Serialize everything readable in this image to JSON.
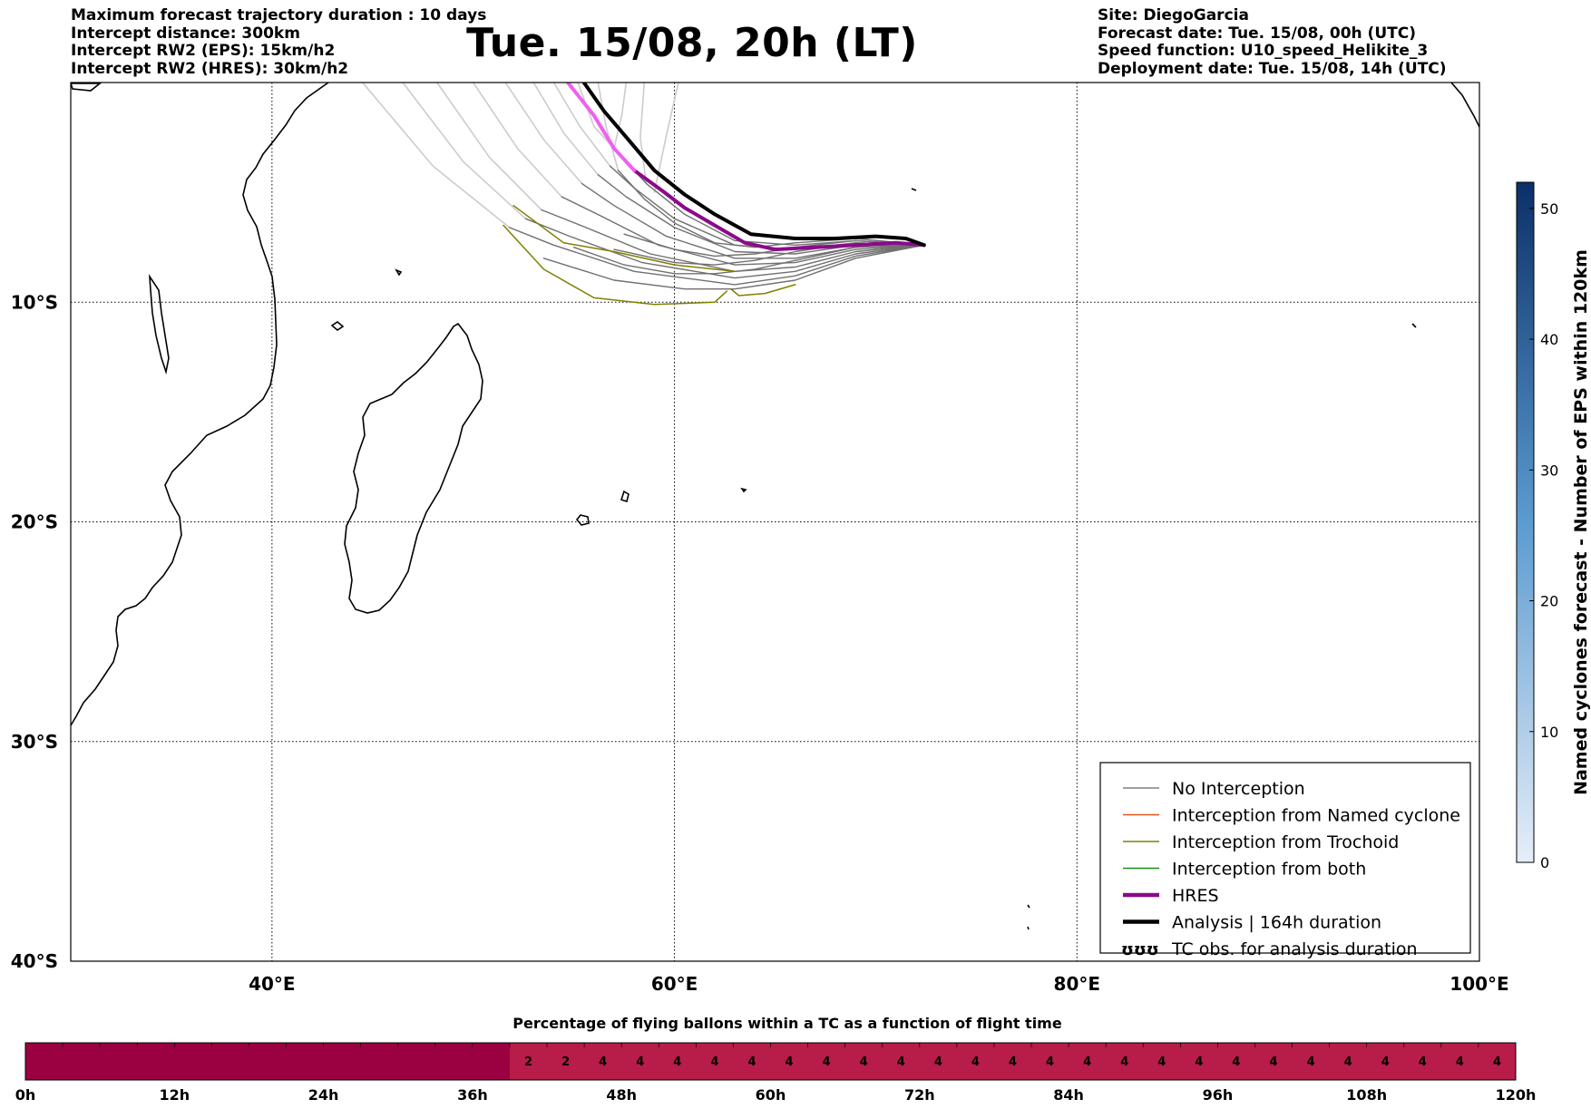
{
  "header": {
    "left": [
      "Maximum forecast trajectory duration : 10 days",
      "Intercept distance: 300km",
      "Intercept RW2 (EPS):  15km/h2",
      "Intercept RW2 (HRES): 30km/h2"
    ],
    "right": [
      "Site: DiegoGarcia",
      "Forecast date: Tue. 15/08, 00h (UTC)",
      "Speed function: U10_speed_Helikite_3",
      "Deployment date: Tue. 15/08, 14h (UTC)"
    ],
    "title": "Tue. 15/08, 20h (LT)"
  },
  "map": {
    "lon_range": [
      30,
      100
    ],
    "lat_range": [
      -40,
      0
    ],
    "lon_ticks": [
      40,
      60,
      80,
      100
    ],
    "lon_tick_labels": [
      "40°E",
      "60°E",
      "80°E",
      "100°E"
    ],
    "lat_ticks": [
      -10,
      -20,
      -30,
      -40
    ],
    "lat_tick_labels": [
      "10°S",
      "20°S",
      "30°S",
      "40°S"
    ],
    "grid": "dotted"
  },
  "legend": {
    "placement": "lower-right",
    "items": [
      {
        "label": "No Interception",
        "color": "#808080",
        "style": "thin"
      },
      {
        "label": "Interception from Named cyclone",
        "color": "#e8531a",
        "style": "thin"
      },
      {
        "label": "Interception from Trochoid",
        "color": "#808000",
        "style": "thin"
      },
      {
        "label": "Interception from both",
        "color": "#1a8c1a",
        "style": "thin"
      },
      {
        "label": "HRES",
        "color": "#8b0a8b",
        "style": "thick"
      },
      {
        "label": "Analysis | 164h duration",
        "color": "#000000",
        "style": "thick"
      },
      {
        "label": "TC obs. for analysis duration",
        "color": "#000000",
        "style": "symbol",
        "symbol": "ʊʊʊ"
      }
    ]
  },
  "colorbar_right": {
    "label": "Named cyclones forecast - Number of EPS within 120km",
    "ticks": [
      0,
      10,
      20,
      30,
      40,
      50
    ],
    "max": 52,
    "color_low": "#e6eef8",
    "color_high": "#0b3068"
  },
  "timeline": {
    "title": "Percentage of flying ballons within a TC as a function of flight time",
    "tick_labels": [
      "0h",
      "12h",
      "24h",
      "36h",
      "48h",
      "60h",
      "72h",
      "84h",
      "96h",
      "108h",
      "120h"
    ],
    "segments_3h": [
      0,
      0,
      0,
      0,
      0,
      0,
      0,
      0,
      0,
      0,
      0,
      0,
      0,
      2,
      2,
      4,
      4,
      4,
      4,
      4,
      4,
      4,
      4,
      4,
      4,
      4,
      4,
      4,
      4,
      4,
      4,
      4,
      4,
      4,
      4,
      4,
      4,
      4,
      4,
      4
    ],
    "color_zero": "#9b0040",
    "color_nonzero": "#b81c48"
  },
  "chart_data": {
    "type": "line",
    "title": "Tue. 15/08, 20h (LT)",
    "x_unit": "longitude (°E)",
    "y_unit": "latitude (°N, negative = S)",
    "xlim": [
      30,
      100
    ],
    "ylim": [
      -40,
      0
    ],
    "origin": [
      72.4,
      -7.4
    ],
    "series": [
      {
        "name": "Analysis | 164h duration",
        "color": "#000000",
        "points": [
          [
            72.4,
            -7.4
          ],
          [
            71.5,
            -7.1
          ],
          [
            70.0,
            -7.0
          ],
          [
            68.0,
            -7.1
          ],
          [
            66.0,
            -7.1
          ],
          [
            63.8,
            -6.9
          ],
          [
            62.0,
            -6.0
          ],
          [
            60.5,
            -5.1
          ],
          [
            59.0,
            -4.0
          ],
          [
            57.8,
            -2.7
          ],
          [
            56.5,
            -1.3
          ],
          [
            55.5,
            0
          ]
        ]
      },
      {
        "name": "HRES",
        "color": "#8b0a8b",
        "points": [
          [
            72.4,
            -7.4
          ],
          [
            71.0,
            -7.3
          ],
          [
            69.0,
            -7.4
          ],
          [
            67.0,
            -7.5
          ],
          [
            65.0,
            -7.6
          ],
          [
            63.5,
            -7.3
          ],
          [
            62.0,
            -6.5
          ],
          [
            60.5,
            -5.7
          ],
          [
            59.5,
            -5.0
          ],
          [
            58.0,
            -4.0
          ],
          [
            57.0,
            -3.0
          ],
          [
            56.0,
            -1.5
          ],
          [
            54.7,
            0
          ]
        ],
        "segment_colors": [
          {
            "from_index": 9,
            "color": "#f060f0"
          }
        ]
      },
      {
        "name": "EPS members (dark)",
        "color": "#707070",
        "members": [
          [
            [
              72.4,
              -7.4
            ],
            [
              69,
              -7.2
            ],
            [
              66,
              -7.4
            ],
            [
              63,
              -7.2
            ],
            [
              60.5,
              -6.0
            ],
            [
              58.6,
              -4.6
            ],
            [
              57.5,
              -3.5
            ]
          ],
          [
            [
              72.4,
              -7.4
            ],
            [
              69,
              -7.3
            ],
            [
              66,
              -7.6
            ],
            [
              63,
              -7.4
            ],
            [
              60.0,
              -6.2
            ],
            [
              58.0,
              -4.8
            ],
            [
              56.8,
              -3.8
            ]
          ],
          [
            [
              72.4,
              -7.4
            ],
            [
              69,
              -7.4
            ],
            [
              66,
              -7.8
            ],
            [
              63,
              -7.7
            ],
            [
              60.0,
              -6.6
            ],
            [
              57.6,
              -5.2
            ],
            [
              56.2,
              -4.2
            ]
          ],
          [
            [
              72.4,
              -7.4
            ],
            [
              69,
              -7.5
            ],
            [
              66,
              -8.0
            ],
            [
              63,
              -8.0
            ],
            [
              59.6,
              -7.0
            ],
            [
              57.0,
              -5.6
            ],
            [
              55.4,
              -4.6
            ]
          ],
          [
            [
              72.4,
              -7.4
            ],
            [
              69,
              -7.6
            ],
            [
              66,
              -8.2
            ],
            [
              63,
              -8.3
            ],
            [
              59.2,
              -7.4
            ],
            [
              56.4,
              -6.1
            ],
            [
              54.4,
              -5.2
            ]
          ],
          [
            [
              72.4,
              -7.4
            ],
            [
              69,
              -7.7
            ],
            [
              66,
              -8.4
            ],
            [
              63,
              -8.6
            ],
            [
              58.8,
              -7.8
            ],
            [
              55.6,
              -6.6
            ],
            [
              53.4,
              -5.8
            ]
          ],
          [
            [
              72.4,
              -7.4
            ],
            [
              69,
              -7.8
            ],
            [
              66,
              -8.6
            ],
            [
              63,
              -8.9
            ],
            [
              58.4,
              -8.2
            ],
            [
              54.8,
              -7.0
            ],
            [
              52.6,
              -6.2
            ]
          ],
          [
            [
              72.4,
              -7.4
            ],
            [
              69,
              -7.9
            ],
            [
              66,
              -8.8
            ],
            [
              63,
              -9.2
            ],
            [
              58.0,
              -8.6
            ],
            [
              54.0,
              -7.4
            ],
            [
              51.8,
              -6.6
            ]
          ],
          [
            [
              72.4,
              -7.4
            ],
            [
              69,
              -8.0
            ],
            [
              66,
              -9.0
            ],
            [
              63,
              -9.4
            ],
            [
              60.5,
              -9.4
            ],
            [
              57.0,
              -9.0
            ],
            [
              53.5,
              -8.0
            ]
          ],
          [
            [
              72.4,
              -7.4
            ],
            [
              69,
              -7.2
            ],
            [
              66,
              -7.5
            ],
            [
              64,
              -7.8
            ],
            [
              62,
              -7.9
            ],
            [
              60,
              -7.6
            ],
            [
              57.5,
              -6.9
            ]
          ],
          [
            [
              72.4,
              -7.4
            ],
            [
              69,
              -7.1
            ],
            [
              66,
              -7.3
            ],
            [
              64,
              -7.5
            ],
            [
              62,
              -7.3
            ],
            [
              60,
              -6.4
            ],
            [
              58.5,
              -5.3
            ],
            [
              57.2,
              -4.0
            ]
          ],
          [
            [
              72.4,
              -7.4
            ],
            [
              69,
              -7.3
            ],
            [
              66,
              -7.7
            ],
            [
              64,
              -8.1
            ],
            [
              62,
              -8.3
            ],
            [
              60,
              -8.2
            ],
            [
              57.0,
              -7.6
            ]
          ],
          [
            [
              72.4,
              -7.4
            ],
            [
              69,
              -7.5
            ],
            [
              66,
              -8.1
            ],
            [
              64,
              -8.5
            ],
            [
              62,
              -8.7
            ],
            [
              60,
              -8.7
            ],
            [
              57.5,
              -8.3
            ],
            [
              55,
              -7.5
            ]
          ]
        ]
      },
      {
        "name": "EPS members (light, beyond analysis duration)",
        "color": "#cccccc",
        "members": [
          [
            [
              57.5,
              -3.5
            ],
            [
              56.0,
              -2.0
            ],
            [
              55.2,
              0
            ]
          ],
          [
            [
              56.8,
              -3.8
            ],
            [
              55.3,
              -2.0
            ],
            [
              54.0,
              0
            ]
          ],
          [
            [
              56.2,
              -4.2
            ],
            [
              54.5,
              -2.3
            ],
            [
              53.0,
              0
            ]
          ],
          [
            [
              55.4,
              -4.6
            ],
            [
              53.5,
              -2.6
            ],
            [
              51.6,
              0
            ]
          ],
          [
            [
              54.4,
              -5.2
            ],
            [
              52.2,
              -3.0
            ],
            [
              50.0,
              0
            ]
          ],
          [
            [
              53.4,
              -5.8
            ],
            [
              50.8,
              -3.4
            ],
            [
              48.2,
              0
            ]
          ],
          [
            [
              52.6,
              -6.2
            ],
            [
              49.5,
              -3.6
            ],
            [
              46.5,
              0
            ]
          ],
          [
            [
              51.8,
              -6.6
            ],
            [
              48.0,
              -3.8
            ],
            [
              44.5,
              0
            ]
          ],
          [
            [
              57.2,
              -4.0
            ],
            [
              56.6,
              -2.0
            ],
            [
              56.2,
              0
            ]
          ],
          [
            [
              58.6,
              -4.6
            ],
            [
              58.3,
              -2.5
            ],
            [
              58.5,
              0
            ]
          ],
          [
            [
              59.0,
              -5.0
            ],
            [
              59.6,
              -2.4
            ],
            [
              60.2,
              0
            ]
          ],
          [
            [
              57.0,
              -3.0
            ],
            [
              57.4,
              -1.4
            ],
            [
              57.6,
              0
            ]
          ]
        ]
      },
      {
        "name": "Interception from Trochoid",
        "color": "#808000",
        "members": [
          [
            [
              63.0,
              -8.6
            ],
            [
              60.0,
              -8.3
            ],
            [
              57.0,
              -7.7
            ],
            [
              54.5,
              -7.3
            ],
            [
              52.0,
              -5.6
            ]
          ],
          [
            [
              62.6,
              -9.5
            ],
            [
              62.0,
              -10.0
            ],
            [
              59.0,
              -10.1
            ],
            [
              56.0,
              -9.8
            ],
            [
              53.5,
              -8.5
            ],
            [
              51.5,
              -6.5
            ]
          ],
          [
            [
              62.8,
              -9.4
            ],
            [
              63.2,
              -9.7
            ],
            [
              64.5,
              -9.6
            ],
            [
              66.0,
              -9.2
            ]
          ]
        ]
      }
    ]
  }
}
